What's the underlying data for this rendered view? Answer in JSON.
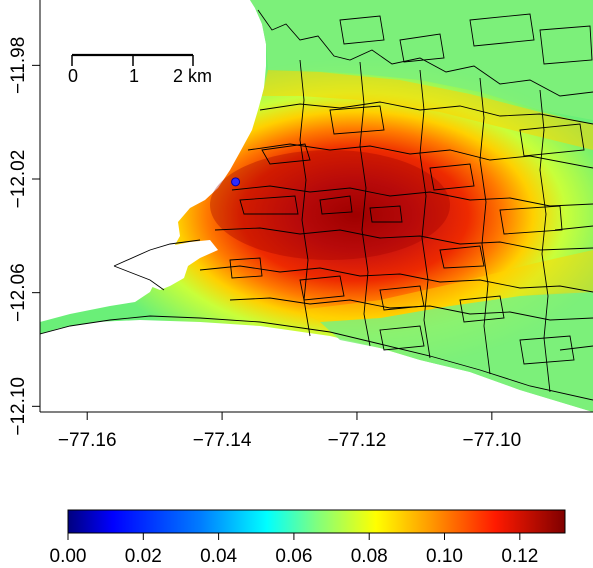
{
  "map": {
    "x_ticks": [
      {
        "value": -77.16,
        "label": "−77.16"
      },
      {
        "value": -77.14,
        "label": "−77.14"
      },
      {
        "value": -77.12,
        "label": "−77.12"
      },
      {
        "value": -77.1,
        "label": "−77.10"
      }
    ],
    "y_ticks": [
      {
        "value": -11.98,
        "label": "−11.98"
      },
      {
        "value": -12.02,
        "label": "−12.02"
      },
      {
        "value": -12.06,
        "label": "−12.06"
      },
      {
        "value": -12.1,
        "label": "−12.10"
      }
    ],
    "x_range": [
      -77.167,
      -77.085
    ],
    "y_range": [
      -12.102,
      -11.957
    ],
    "scale_bar": {
      "labels": [
        "0",
        "1",
        "2 km"
      ]
    },
    "site_marker": {
      "lon": -77.138,
      "lat": -12.021,
      "color": "#2a2aff"
    },
    "boundary_color": "#000000"
  },
  "colorbar": {
    "ticks": [
      {
        "value": 0.0,
        "label": "0.00"
      },
      {
        "value": 0.02,
        "label": "0.02"
      },
      {
        "value": 0.04,
        "label": "0.04"
      },
      {
        "value": 0.06,
        "label": "0.06"
      },
      {
        "value": 0.08,
        "label": "0.08"
      },
      {
        "value": 0.1,
        "label": "0.10"
      },
      {
        "value": 0.12,
        "label": "0.12"
      }
    ],
    "range": [
      0.0,
      0.132
    ],
    "colormap": [
      "#00007f",
      "#0000ff",
      "#007fff",
      "#00ffff",
      "#7fff7f",
      "#ffff00",
      "#ff7f00",
      "#ff0000",
      "#7f0000"
    ]
  }
}
